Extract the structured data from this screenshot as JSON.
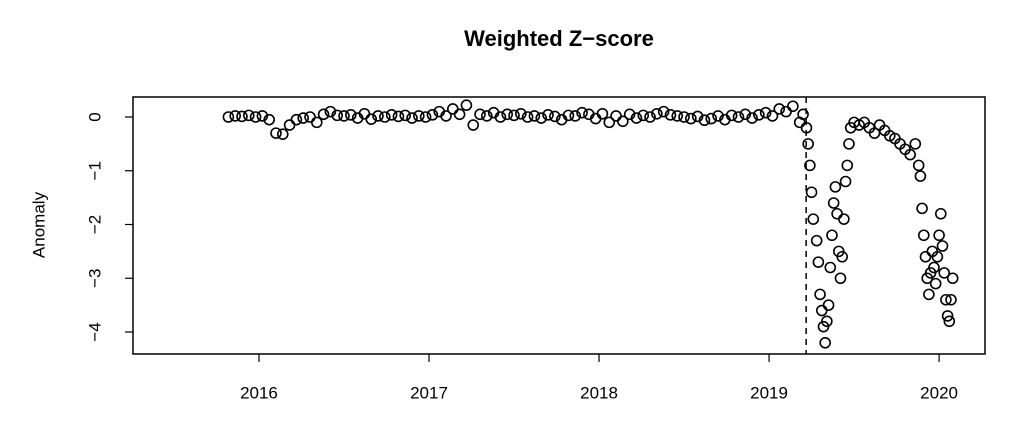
{
  "chart_data": {
    "type": "scatter",
    "title": "Weighted Z−score",
    "y_label": "Anomaly",
    "color": "#000000",
    "x": [
      2015.82,
      2015.86,
      2015.9,
      2015.94,
      2015.98,
      2016.02,
      2016.06,
      2016.1,
      2016.14,
      2016.18,
      2016.22,
      2016.26,
      2016.3,
      2016.34,
      2016.38,
      2016.42,
      2016.46,
      2016.5,
      2016.54,
      2016.58,
      2016.62,
      2016.66,
      2016.7,
      2016.74,
      2016.78,
      2016.82,
      2016.86,
      2016.9,
      2016.94,
      2016.98,
      2017.02,
      2017.06,
      2017.1,
      2017.14,
      2017.18,
      2017.22,
      2017.26,
      2017.3,
      2017.34,
      2017.38,
      2017.42,
      2017.46,
      2017.5,
      2017.54,
      2017.58,
      2017.62,
      2017.66,
      2017.7,
      2017.74,
      2017.78,
      2017.82,
      2017.86,
      2017.9,
      2017.94,
      2017.98,
      2018.02,
      2018.06,
      2018.1,
      2018.14,
      2018.18,
      2018.22,
      2018.26,
      2018.3,
      2018.34,
      2018.38,
      2018.42,
      2018.46,
      2018.5,
      2018.54,
      2018.58,
      2018.62,
      2018.66,
      2018.7,
      2018.74,
      2018.78,
      2018.82,
      2018.86,
      2018.9,
      2018.94,
      2018.98,
      2019.02,
      2019.06,
      2019.1,
      2019.14,
      2019.18,
      2019.2,
      2019.22,
      2019.23,
      2019.24,
      2019.25,
      2019.26,
      2019.28,
      2019.29,
      2019.3,
      2019.31,
      2019.32,
      2019.33,
      2019.34,
      2019.35,
      2019.36,
      2019.37,
      2019.38,
      2019.39,
      2019.4,
      2019.41,
      2019.42,
      2019.43,
      2019.44,
      2019.45,
      2019.46,
      2019.47,
      2019.48,
      2019.5,
      2019.53,
      2019.56,
      2019.59,
      2019.62,
      2019.65,
      2019.68,
      2019.71,
      2019.74,
      2019.77,
      2019.8,
      2019.83,
      2019.86,
      2019.88,
      2019.89,
      2019.9,
      2019.91,
      2019.92,
      2019.93,
      2019.94,
      2019.95,
      2019.96,
      2019.97,
      2019.98,
      2019.99,
      2020.0,
      2020.01,
      2020.02,
      2020.03,
      2020.04,
      2020.05,
      2020.06,
      2020.07,
      2020.08
    ],
    "values": [
      0.0,
      0.02,
      0.01,
      0.03,
      0.0,
      0.02,
      -0.05,
      -0.3,
      -0.32,
      -0.15,
      -0.05,
      -0.02,
      0.0,
      -0.1,
      0.05,
      0.1,
      0.03,
      0.02,
      0.04,
      -0.02,
      0.06,
      -0.04,
      0.02,
      0.0,
      0.04,
      0.01,
      0.03,
      -0.02,
      0.02,
      0.0,
      0.04,
      0.1,
      0.02,
      0.15,
      0.05,
      0.22,
      -0.15,
      0.05,
      0.02,
      0.08,
      0.0,
      0.05,
      0.03,
      0.06,
      0.0,
      0.02,
      -0.02,
      0.04,
      0.01,
      -0.05,
      0.03,
      0.02,
      0.08,
      0.05,
      -0.03,
      0.06,
      -0.1,
      0.02,
      -0.08,
      0.05,
      -0.02,
      0.03,
      0.0,
      0.06,
      0.1,
      0.04,
      0.02,
      0.0,
      -0.03,
      0.01,
      -0.06,
      -0.03,
      0.02,
      -0.05,
      0.03,
      0.0,
      0.05,
      -0.02,
      0.04,
      0.08,
      0.02,
      0.15,
      0.1,
      0.2,
      -0.1,
      0.05,
      -0.2,
      -0.5,
      -0.9,
      -1.4,
      -1.9,
      -2.3,
      -2.7,
      -3.3,
      -3.6,
      -3.9,
      -4.2,
      -3.8,
      -3.5,
      -2.8,
      -2.2,
      -1.6,
      -1.3,
      -1.8,
      -2.5,
      -3.0,
      -2.6,
      -1.9,
      -1.2,
      -0.9,
      -0.5,
      -0.2,
      -0.1,
      -0.15,
      -0.1,
      -0.2,
      -0.3,
      -0.15,
      -0.25,
      -0.35,
      -0.4,
      -0.5,
      -0.6,
      -0.7,
      -0.5,
      -0.9,
      -1.1,
      -1.7,
      -2.2,
      -2.6,
      -3.0,
      -3.3,
      -2.9,
      -2.5,
      -2.8,
      -3.1,
      -2.6,
      -2.2,
      -1.8,
      -2.4,
      -2.9,
      -3.4,
      -3.7,
      -3.8,
      -3.4,
      -3.0
    ],
    "xlim": [
      2015.259,
      2020.27
    ],
    "xticks": [
      2016,
      2017,
      2018,
      2019,
      2020
    ],
    "ylim": [
      -4.409,
      0.372
    ],
    "yticks": [
      {
        "value": -4,
        "label": "−4"
      },
      {
        "value": -3,
        "label": "−3"
      },
      {
        "value": -2,
        "label": "−2"
      },
      {
        "value": -1,
        "label": "−1"
      },
      0
    ],
    "vline": 2019.218
  }
}
